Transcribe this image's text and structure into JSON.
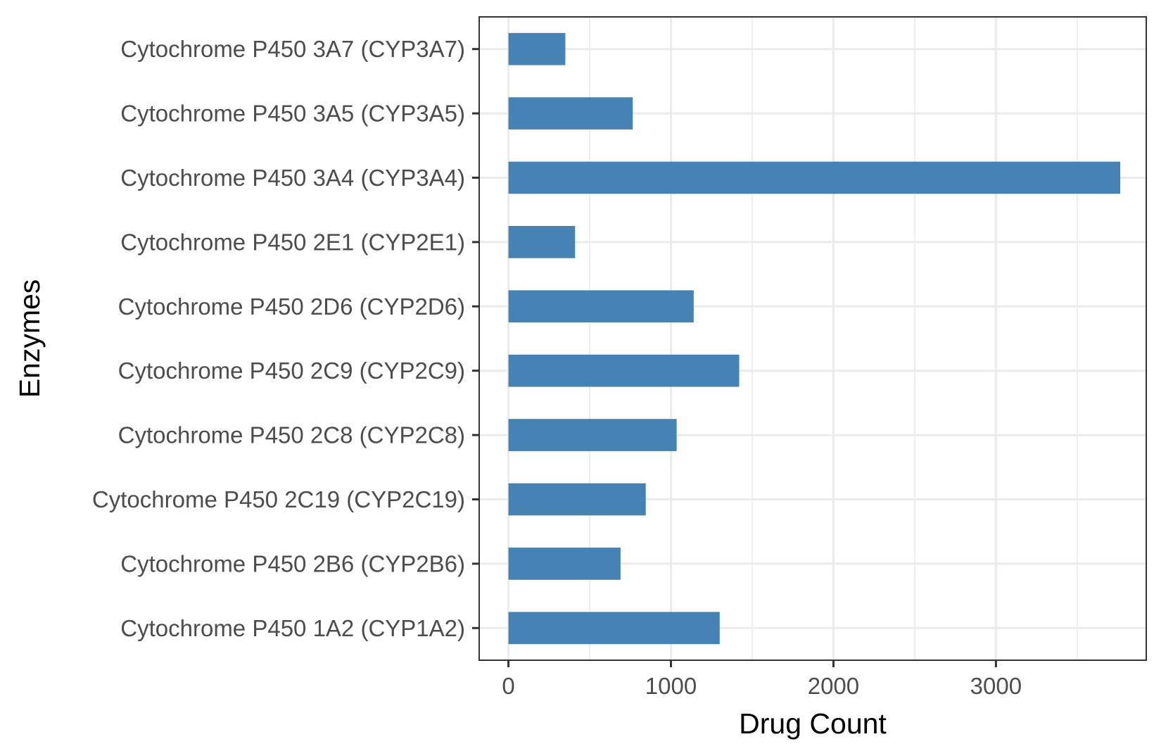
{
  "chart_data": {
    "type": "bar",
    "orientation": "horizontal",
    "title": "",
    "xlabel": "Drug Count",
    "ylabel": "Enzymes",
    "categories": [
      "Cytochrome P450 1A2 (CYP1A2)",
      "Cytochrome P450 2B6 (CYP2B6)",
      "Cytochrome P450 2C19 (CYP2C19)",
      "Cytochrome P450 2C8 (CYP2C8)",
      "Cytochrome P450 2C9 (CYP2C9)",
      "Cytochrome P450 2D6 (CYP2D6)",
      "Cytochrome P450 2E1 (CYP2E1)",
      "Cytochrome P450 3A4 (CYP3A4)",
      "Cytochrome P450 3A5 (CYP3A5)",
      "Cytochrome P450 3A7 (CYP3A7)"
    ],
    "values": [
      1300,
      690,
      845,
      1035,
      1420,
      1140,
      410,
      3765,
      765,
      350
    ],
    "xlim": [
      -180,
      3925
    ],
    "xticks": [
      0,
      1000,
      2000,
      3000
    ],
    "xtick_labels": [
      "0",
      "1000",
      "2000",
      "3000"
    ],
    "grid": true,
    "legend": "none",
    "colors": {
      "bar": "#4682b4",
      "grid": "#ebebeb",
      "panel_border": "#333333",
      "tick_label": "#4d4d4d",
      "axis_title": "#000000"
    }
  }
}
